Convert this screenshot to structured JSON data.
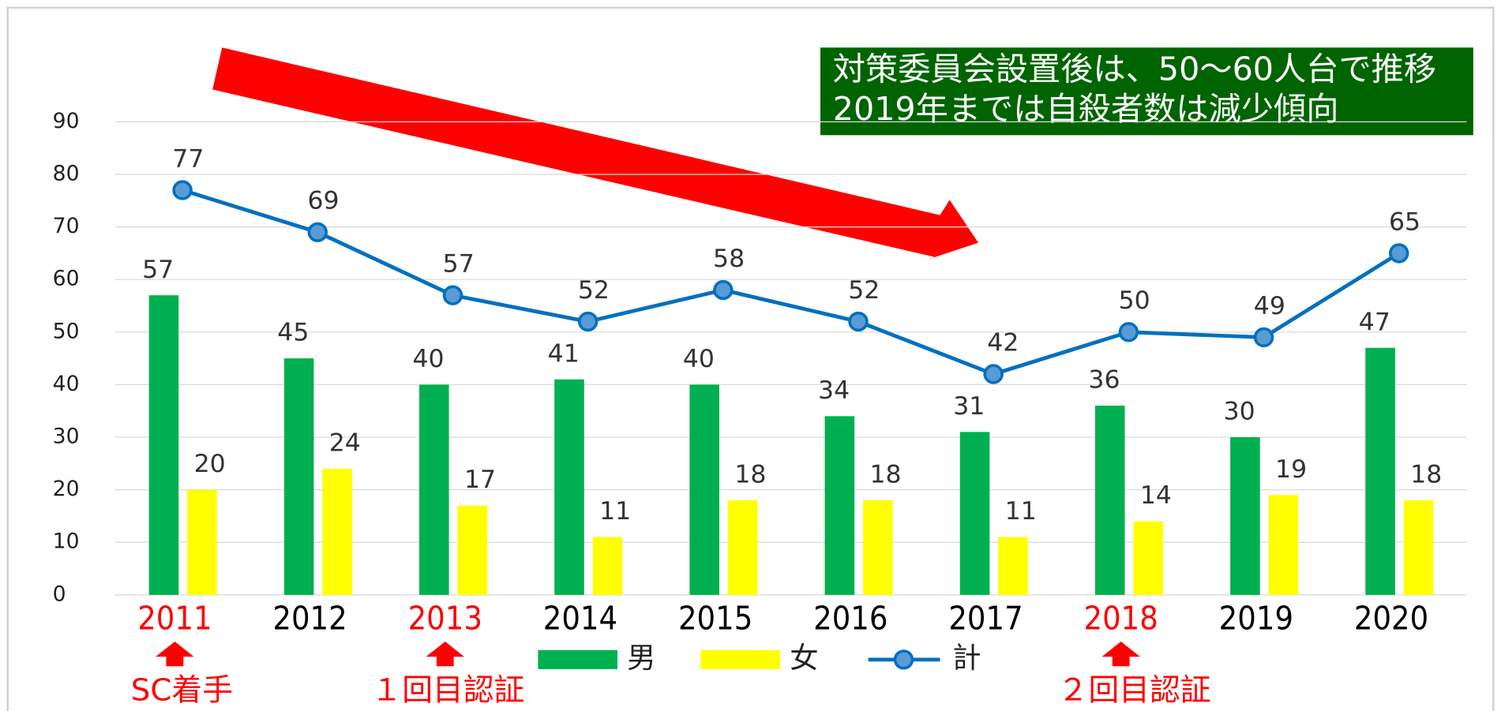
{
  "chart_data": {
    "type": "bar-line",
    "categories": [
      "2011",
      "2012",
      "2013",
      "2014",
      "2015",
      "2016",
      "2017",
      "2018",
      "2019",
      "2020"
    ],
    "category_colors": [
      "#ff0000",
      "#000000",
      "#ff0000",
      "#000000",
      "#000000",
      "#000000",
      "#000000",
      "#ff0000",
      "#000000",
      "#000000"
    ],
    "series": [
      {
        "name": "男",
        "type": "bar",
        "color": "#00b050",
        "values": [
          57,
          45,
          40,
          41,
          40,
          34,
          31,
          36,
          30,
          47
        ]
      },
      {
        "name": "女",
        "type": "bar",
        "color": "#ffff00",
        "values": [
          20,
          24,
          17,
          11,
          18,
          18,
          11,
          14,
          19,
          18
        ]
      },
      {
        "name": "計",
        "type": "line",
        "color": "#0070c0",
        "values": [
          77,
          69,
          57,
          52,
          58,
          52,
          42,
          50,
          49,
          65
        ]
      }
    ],
    "ylim": [
      0,
      90
    ],
    "yticks": [
      0,
      10,
      20,
      30,
      40,
      50,
      60,
      70,
      80,
      90
    ],
    "grid": true,
    "callout": [
      "対策委員会設置後は、50～60人台で推移",
      "2019年までは自殺者数は減少傾向"
    ],
    "annotations": [
      "SC着手",
      "１回目認証",
      "２回目認証"
    ]
  }
}
